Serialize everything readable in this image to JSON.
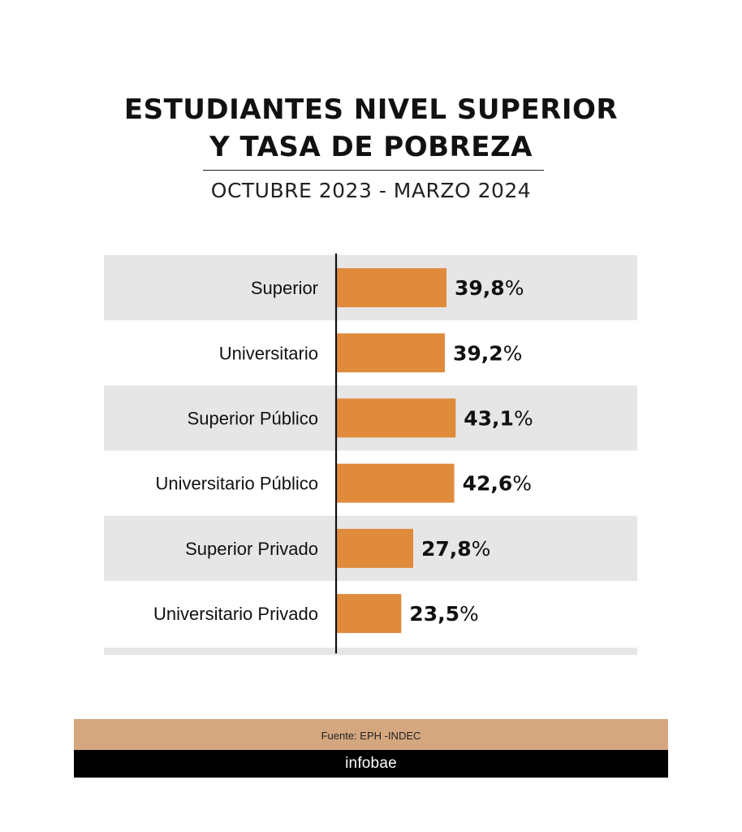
{
  "header": {
    "title_line1": "ESTUDIANTES NIVEL SUPERIOR",
    "title_line2": "Y TASA DE POBREZA",
    "subtitle": "OCTUBRE 2023 - MARZO 2024"
  },
  "chart_data": {
    "type": "bar",
    "orientation": "horizontal",
    "categories": [
      "Superior",
      "Universitario",
      "Superior Público",
      "Universitario Público",
      "Superior Privado",
      "Universitario Privado"
    ],
    "values": [
      39.8,
      39.2,
      43.1,
      42.6,
      27.8,
      23.5
    ],
    "value_labels": [
      "39,8",
      "39,2",
      "43,1",
      "42,6",
      "27,8",
      "23,5"
    ],
    "unit": "%",
    "title": "ESTUDIANTES NIVEL SUPERIOR Y TASA DE POBREZA",
    "subtitle": "OCTUBRE 2023 - MARZO 2024",
    "xlabel": "",
    "ylabel": "",
    "xlim": [
      0,
      100
    ],
    "grid": false,
    "legend": "none",
    "bar_color": "#e08a3c",
    "band_color": "#e6e6e6",
    "axis_color": "#111111"
  },
  "footer": {
    "source": "Fuente: EPH -INDEC",
    "brand": "infobae",
    "source_bg": "#d4a77f",
    "brand_bg": "#000000"
  }
}
